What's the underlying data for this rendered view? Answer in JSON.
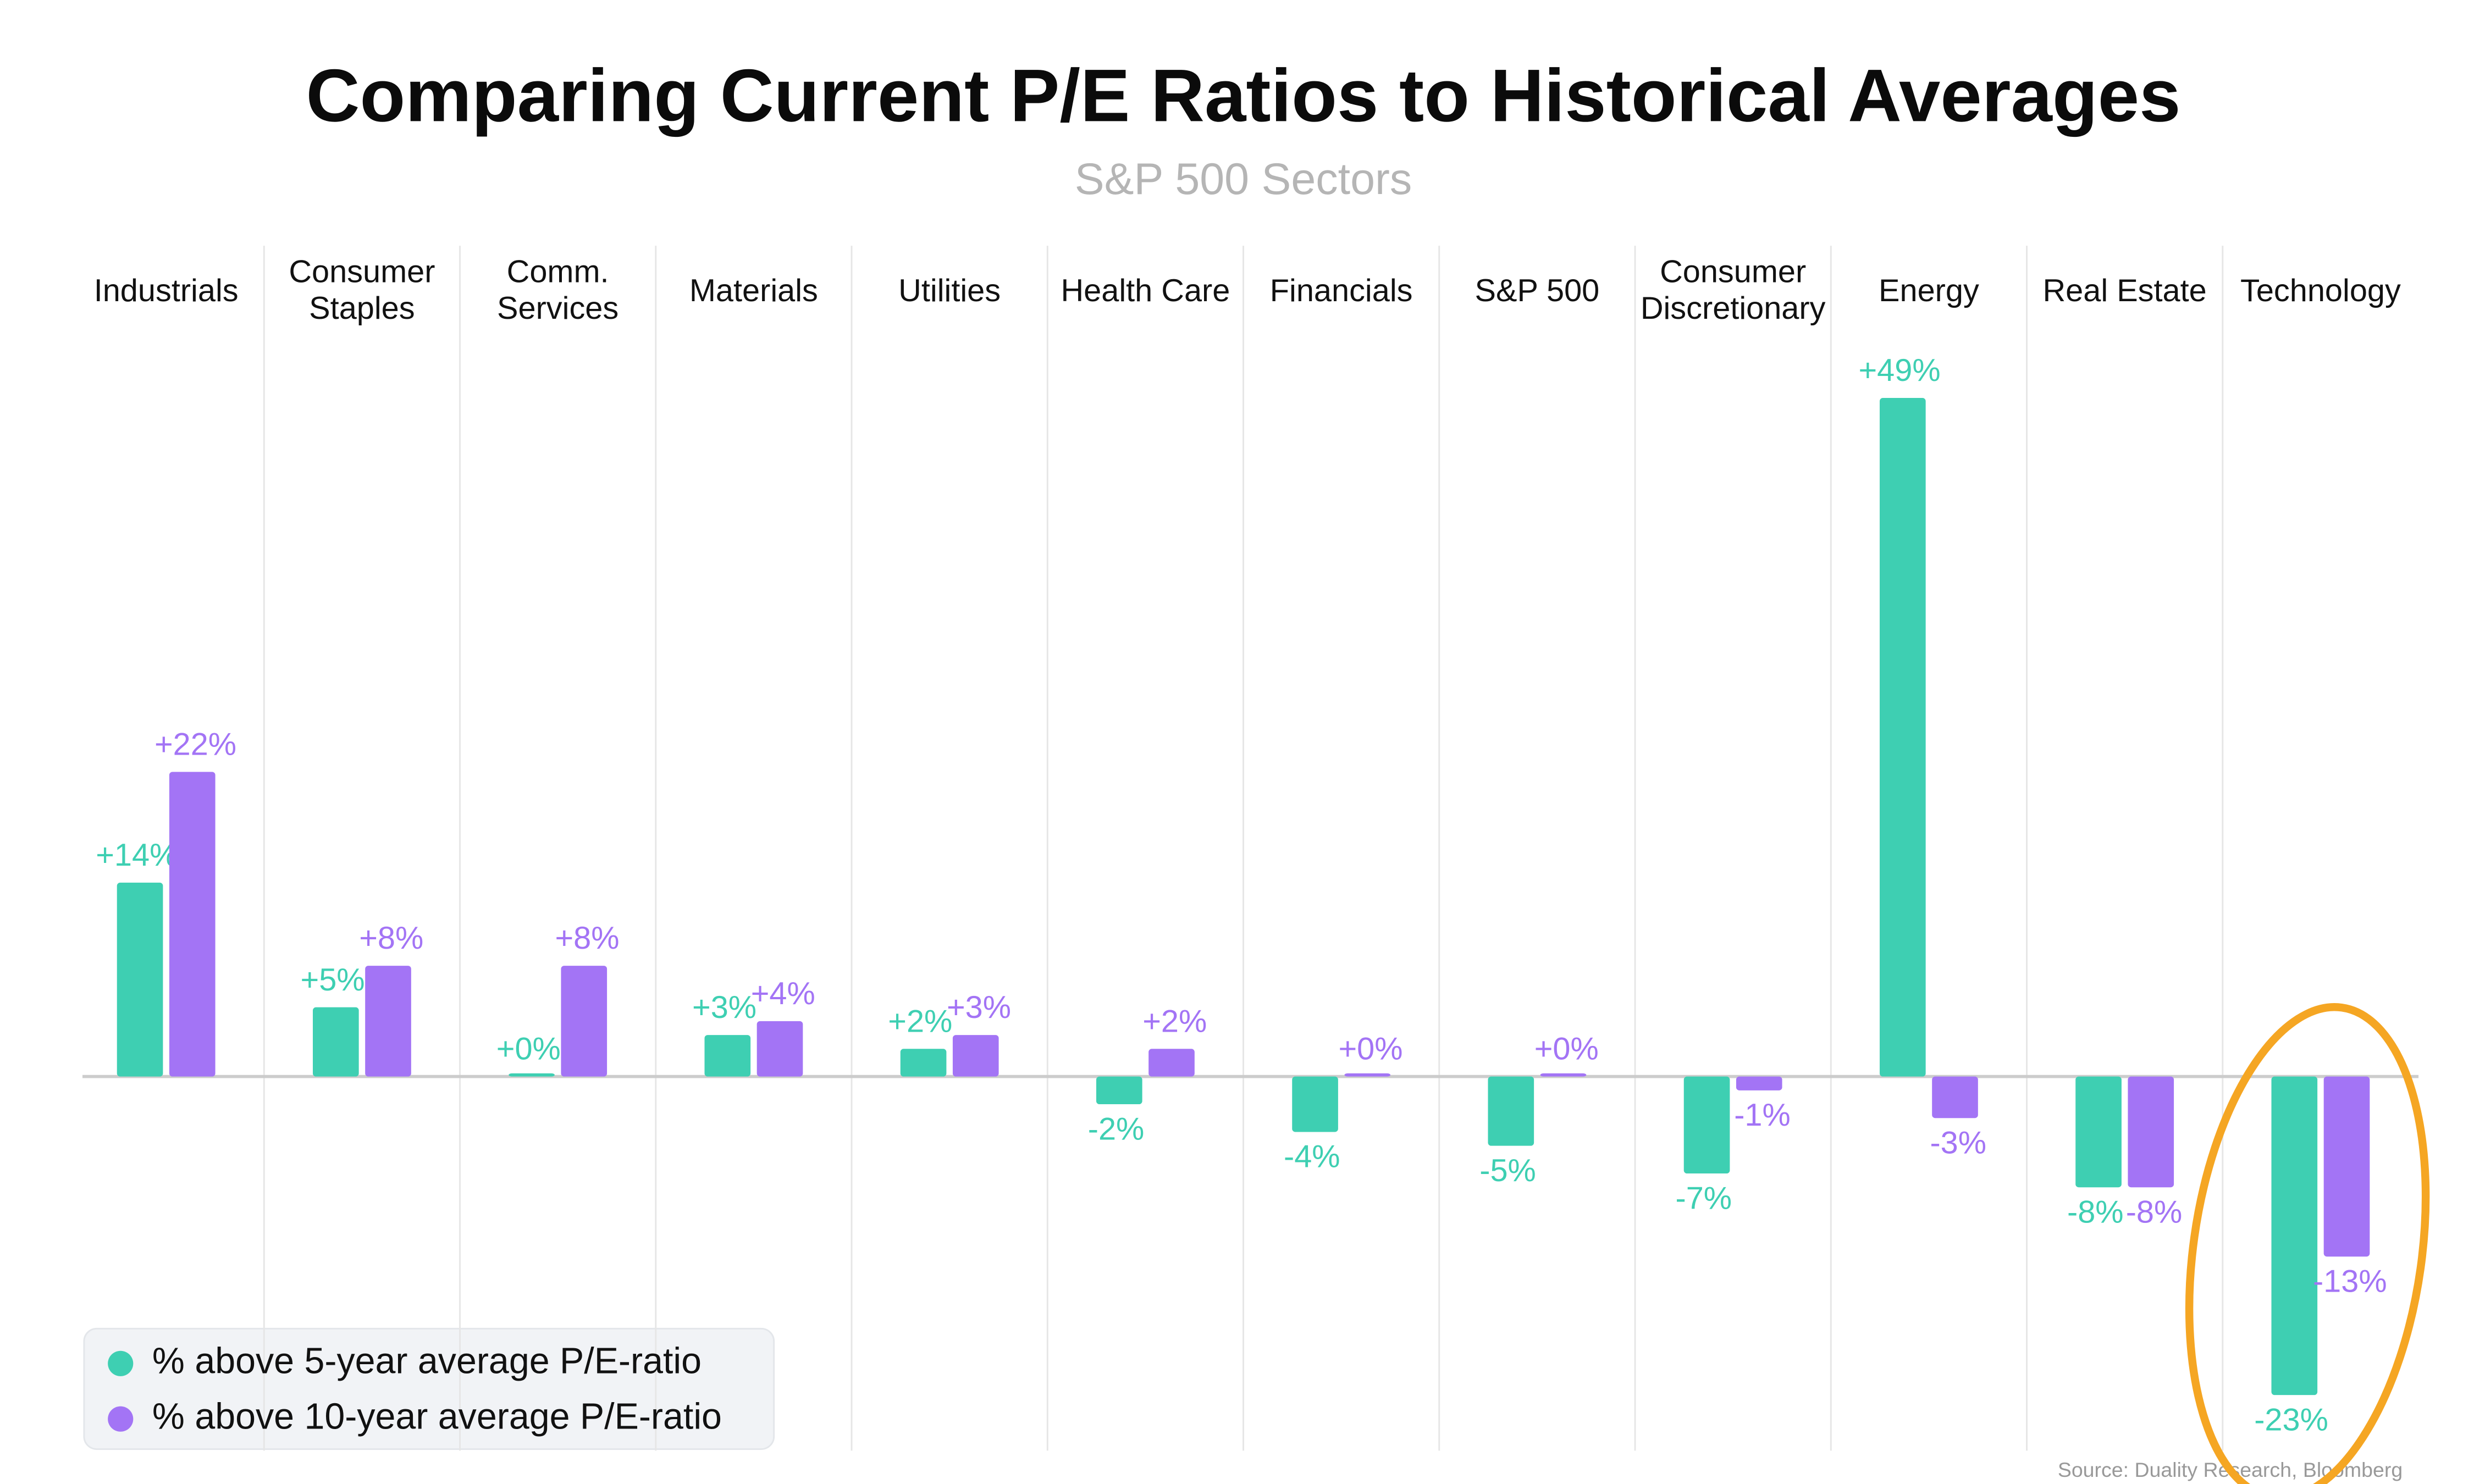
{
  "chart_data": {
    "type": "bar",
    "title": "Comparing Current P/E Ratios to Historical Averages",
    "subtitle": "S&P 500 Sectors",
    "source": "Source: Duality Research, Bloomberg",
    "categories": [
      "Industrials",
      "Consumer Staples",
      "Comm. Services",
      "Materials",
      "Utilities",
      "Health Care",
      "Financials",
      "S&P 500",
      "Consumer Discretionary",
      "Energy",
      "Real Estate",
      "Technology"
    ],
    "series": [
      {
        "name": "% above 5-year average P/E-ratio",
        "color": "#3ecfb2",
        "values": [
          14,
          5,
          0,
          3,
          2,
          -2,
          -4,
          -5,
          -7,
          49,
          -8,
          -23
        ],
        "value_labels": [
          "+14%",
          "+5%",
          "+0%",
          "+3%",
          "+2%",
          "-2%",
          "-4%",
          "-5%",
          "-7%",
          "+49%",
          "-8%",
          "-23%"
        ]
      },
      {
        "name": "% above 10-year average P/E-ratio",
        "color": "#a374f5",
        "values": [
          22,
          8,
          8,
          4,
          3,
          2,
          0,
          0,
          -1,
          -3,
          -8,
          -13
        ],
        "value_labels": [
          "+22%",
          "+8%",
          "+8%",
          "+4%",
          "+3%",
          "+2%",
          "+0%",
          "+0%",
          "-1%",
          "-3%",
          "-8%",
          "-13%"
        ]
      }
    ]
  }
}
